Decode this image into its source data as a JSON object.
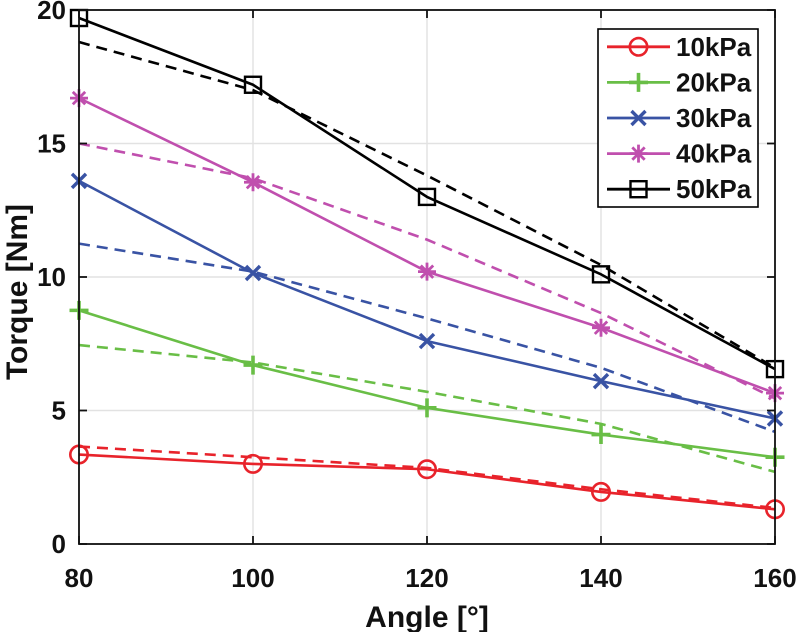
{
  "figure": {
    "background": "#ffffff",
    "grid_color": "#e2e2e2",
    "axis_color": "#111111",
    "legend_border_color": "#000000",
    "legend_background": "#ffffff"
  },
  "chart_data": {
    "type": "line",
    "title": "",
    "xlabel": "Angle [°]",
    "ylabel": "Torque [Nm]",
    "xlim": [
      80,
      160
    ],
    "ylim": [
      0,
      20
    ],
    "xticks": [
      80,
      100,
      120,
      140,
      160
    ],
    "yticks": [
      0,
      5,
      10,
      15,
      20
    ],
    "grid": true,
    "legend_position": "top-right",
    "x": [
      80,
      100,
      120,
      140,
      160
    ],
    "series": [
      {
        "name": "10kPa",
        "color": "#e8232b",
        "marker": "circle",
        "solid_values": [
          3.35,
          3.0,
          2.8,
          1.95,
          1.3
        ],
        "dashed_values": [
          3.65,
          3.25,
          2.85,
          2.05,
          1.35
        ]
      },
      {
        "name": "20kPa",
        "color": "#69be46",
        "marker": "plus",
        "solid_values": [
          8.75,
          6.7,
          5.1,
          4.1,
          3.25
        ],
        "dashed_values": [
          7.45,
          6.8,
          5.7,
          4.5,
          2.7
        ]
      },
      {
        "name": "30kPa",
        "color": "#3953a4",
        "marker": "x",
        "solid_values": [
          13.6,
          10.15,
          7.6,
          6.1,
          4.7
        ],
        "dashed_values": [
          11.25,
          10.2,
          8.45,
          6.6,
          4.2
        ]
      },
      {
        "name": "40kPa",
        "color": "#c04fae",
        "marker": "asterisk",
        "solid_values": [
          16.7,
          13.55,
          10.2,
          8.1,
          5.65
        ],
        "dashed_values": [
          15.0,
          13.7,
          11.4,
          8.65,
          5.45
        ]
      },
      {
        "name": "50kPa",
        "color": "#000000",
        "marker": "square",
        "solid_values": [
          19.7,
          17.2,
          13.0,
          10.1,
          6.55
        ],
        "dashed_values": [
          18.8,
          17.0,
          13.8,
          10.45,
          6.6
        ]
      }
    ]
  }
}
